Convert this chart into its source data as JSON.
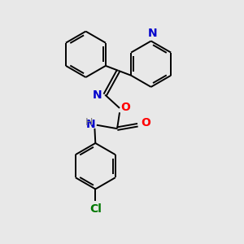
{
  "background_color": "#e8e8e8",
  "bond_color": "#000000",
  "N_color": "#0000cc",
  "O_color": "#ff0000",
  "Cl_color": "#007700",
  "H_color": "#7a7a7a",
  "font_size": 9,
  "line_width": 1.4,
  "figsize": [
    3.0,
    3.0
  ],
  "dpi": 100,
  "xlim": [
    0,
    10
  ],
  "ylim": [
    0,
    10
  ]
}
